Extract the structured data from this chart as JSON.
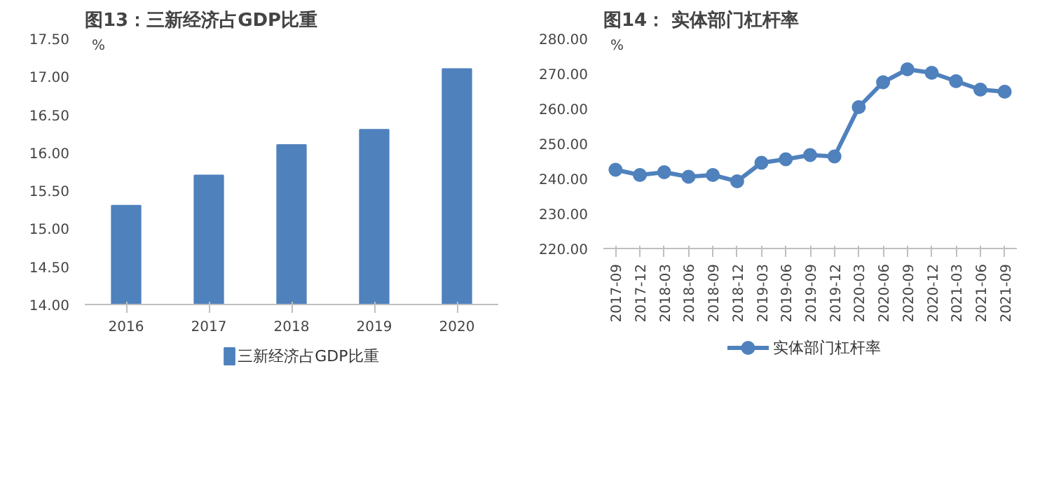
{
  "chart_data": [
    {
      "type": "bar",
      "title": "图13：三新经济占GDP比重",
      "ylabel": "%",
      "categories": [
        "2016",
        "2017",
        "2018",
        "2019",
        "2020"
      ],
      "series": [
        {
          "name": "三新经济占GDP比重",
          "color": "#4f81bd",
          "values": [
            15.3,
            15.7,
            16.1,
            16.3,
            17.1
          ]
        }
      ],
      "ylim": [
        14,
        17.5
      ],
      "yticks": [
        {
          "value": 14,
          "label": "14.00"
        },
        {
          "value": 14.5,
          "label": "14.50"
        },
        {
          "value": 15,
          "label": "15.00"
        },
        {
          "value": 15.5,
          "label": "15.50"
        },
        {
          "value": 16,
          "label": "16.00"
        },
        {
          "value": 16.5,
          "label": "16.50"
        },
        {
          "value": 17,
          "label": "17.00"
        },
        {
          "value": 17.5,
          "label": "17.50"
        }
      ],
      "grid": false,
      "legend": "bottom"
    },
    {
      "type": "line",
      "title": "图14：  实体部门杠杆率",
      "ylabel": "%",
      "categories": [
        "2017-09",
        "2017-12",
        "2018-03",
        "2018-06",
        "2018-09",
        "2018-12",
        "2019-03",
        "2019-06",
        "2019-09",
        "2019-12",
        "2020-03",
        "2020-06",
        "2020-09",
        "2020-12",
        "2021-03",
        "2021-06",
        "2021-09"
      ],
      "series": [
        {
          "name": "实体部门杠杆率",
          "color": "#4f81bd",
          "values": [
            242.5,
            241.0,
            241.8,
            240.5,
            241.0,
            239.2,
            244.5,
            245.5,
            246.7,
            246.3,
            260.4,
            267.5,
            271.2,
            270.2,
            267.8,
            265.4,
            264.8
          ]
        }
      ],
      "ylim": [
        220,
        280
      ],
      "yticks": [
        {
          "value": 220,
          "label": "220.00"
        },
        {
          "value": 230,
          "label": "230.00"
        },
        {
          "value": 240,
          "label": "240.00"
        },
        {
          "value": 250,
          "label": "250.00"
        },
        {
          "value": 260,
          "label": "260.00"
        },
        {
          "value": 270,
          "label": "270.00"
        },
        {
          "value": 280,
          "label": "280.00"
        }
      ],
      "grid": false,
      "legend": "bottom",
      "marker": "circle",
      "line_style": "solid"
    }
  ]
}
